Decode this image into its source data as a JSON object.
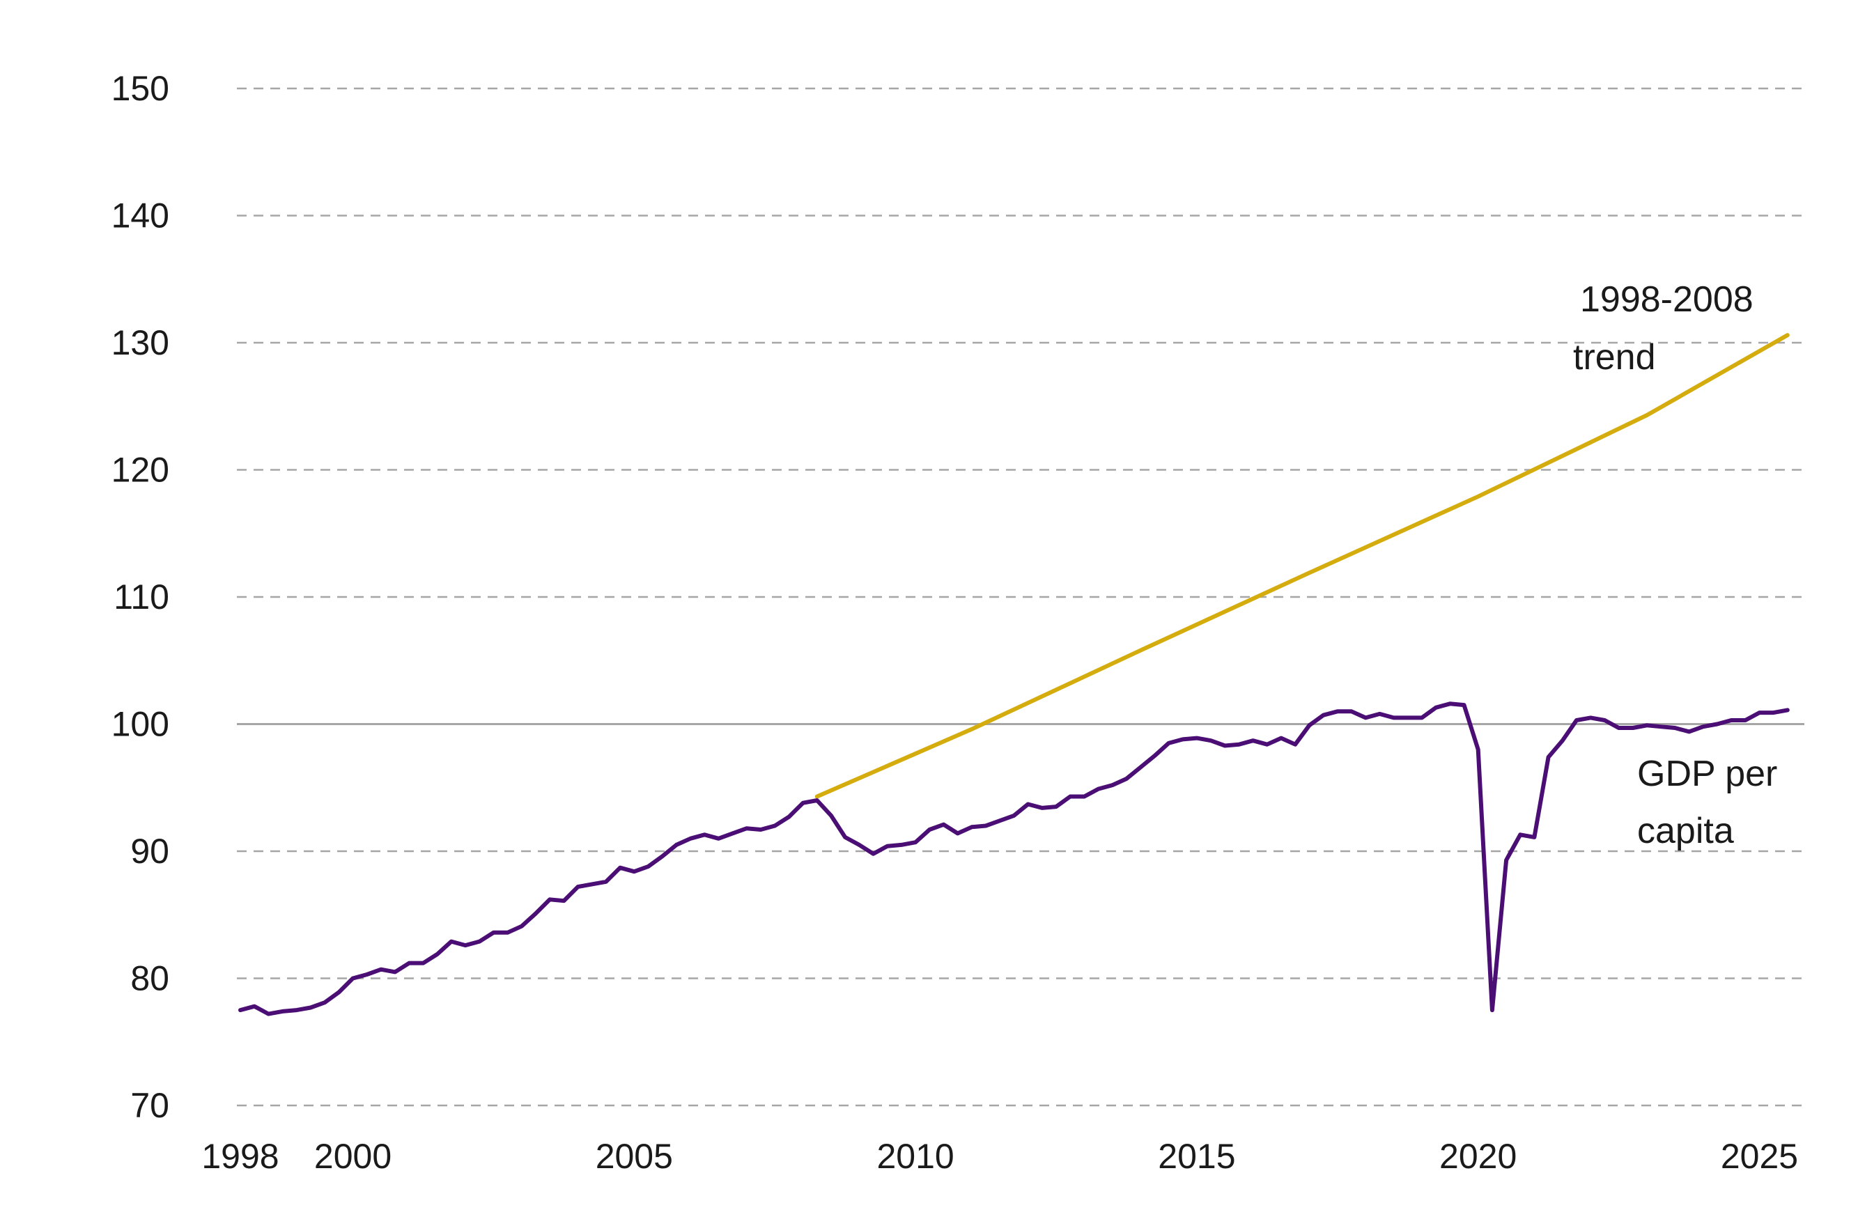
{
  "chart_data": {
    "type": "line",
    "title": "",
    "xlabel": "",
    "ylabel": "",
    "xlim": [
      1998,
      2025.7
    ],
    "ylim": [
      70,
      150
    ],
    "yticks": [
      70,
      80,
      90,
      100,
      110,
      120,
      130,
      140,
      150
    ],
    "xticks": [
      1998,
      2000,
      2005,
      2010,
      2015,
      2020,
      2025
    ],
    "grid": true,
    "reference_line": 100,
    "colors": {
      "gdp": "#4b0e74",
      "trend": "#d4ac0d",
      "grid": "#a6a6a6",
      "reference": "#a6a6a6"
    },
    "annotations": [
      {
        "series": "trend",
        "lines": [
          "1998-2008",
          "trend"
        ]
      },
      {
        "series": "gdp",
        "lines": [
          "GDP per",
          "capita"
        ]
      }
    ],
    "series": [
      {
        "id": "gdp",
        "x": [
          1998.0,
          1998.25,
          1998.5,
          1998.75,
          1999.0,
          1999.25,
          1999.5,
          1999.75,
          2000.0,
          2000.25,
          2000.5,
          2000.75,
          2001.0,
          2001.25,
          2001.5,
          2001.75,
          2002.0,
          2002.25,
          2002.5,
          2002.75,
          2003.0,
          2003.25,
          2003.5,
          2003.75,
          2004.0,
          2004.25,
          2004.5,
          2004.75,
          2005.0,
          2005.25,
          2005.5,
          2005.75,
          2006.0,
          2006.25,
          2006.5,
          2006.75,
          2007.0,
          2007.25,
          2007.5,
          2007.75,
          2008.0,
          2008.25,
          2008.5,
          2008.75,
          2009.0,
          2009.25,
          2009.5,
          2009.75,
          2010.0,
          2010.25,
          2010.5,
          2010.75,
          2011.0,
          2011.25,
          2011.5,
          2011.75,
          2012.0,
          2012.25,
          2012.5,
          2012.75,
          2013.0,
          2013.25,
          2013.5,
          2013.75,
          2014.0,
          2014.25,
          2014.5,
          2014.75,
          2015.0,
          2015.25,
          2015.5,
          2015.75,
          2016.0,
          2016.25,
          2016.5,
          2016.75,
          2017.0,
          2017.25,
          2017.5,
          2017.75,
          2018.0,
          2018.25,
          2018.5,
          2018.75,
          2019.0,
          2019.25,
          2019.5,
          2019.75,
          2020.0,
          2020.25,
          2020.5,
          2020.75,
          2021.0,
          2021.25,
          2021.5,
          2021.75,
          2022.0,
          2022.25,
          2022.5,
          2022.75,
          2023.0,
          2023.25,
          2023.5,
          2023.75,
          2024.0,
          2024.25,
          2024.5,
          2024.75,
          2025.0,
          2025.25,
          2025.5
        ],
        "values": [
          77.5,
          77.8,
          77.2,
          77.4,
          77.5,
          77.7,
          78.1,
          78.9,
          80.0,
          80.3,
          80.7,
          80.5,
          81.2,
          81.2,
          81.9,
          82.9,
          82.6,
          82.9,
          83.6,
          83.6,
          84.1,
          85.1,
          86.2,
          86.1,
          87.2,
          87.4,
          87.6,
          88.7,
          88.4,
          88.8,
          89.6,
          90.5,
          91.0,
          91.3,
          91.0,
          91.4,
          91.8,
          91.7,
          92.0,
          92.7,
          93.8,
          94.0,
          92.8,
          91.1,
          90.5,
          89.8,
          90.4,
          90.5,
          90.7,
          91.7,
          92.1,
          91.4,
          91.9,
          92.0,
          92.4,
          92.8,
          93.7,
          93.4,
          93.5,
          94.3,
          94.3,
          94.9,
          95.2,
          95.7,
          96.6,
          97.5,
          98.5,
          98.8,
          98.9,
          98.7,
          98.3,
          98.4,
          98.7,
          98.4,
          98.9,
          98.4,
          99.9,
          100.7,
          101.0,
          101.0,
          100.5,
          100.8,
          100.5,
          100.5,
          100.5,
          101.3,
          101.6,
          101.5,
          98.0,
          77.5,
          89.3,
          91.3,
          91.1,
          97.4,
          98.7,
          100.3,
          100.5,
          100.3,
          99.7,
          99.7,
          99.9,
          99.8,
          99.7,
          99.4,
          99.8,
          100.0,
          100.3,
          100.3,
          100.9,
          100.9,
          101.1
        ]
      },
      {
        "id": "trend",
        "x": [
          2008.25,
          2011.0,
          2014.0,
          2017.0,
          2020.0,
          2023.0,
          2025.5
        ],
        "values": [
          94.3,
          99.6,
          105.8,
          111.9,
          117.9,
          124.3,
          130.6
        ]
      }
    ]
  }
}
